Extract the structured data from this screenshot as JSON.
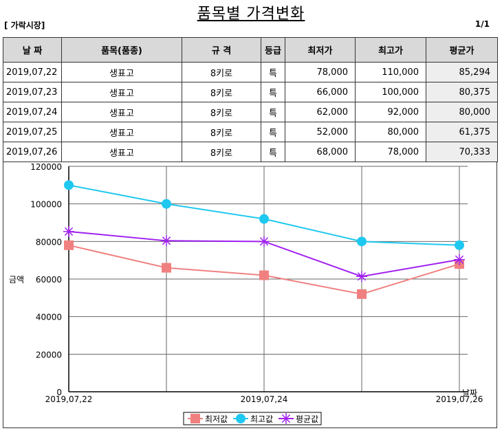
{
  "header": {
    "title": "품목별 가격변화",
    "market": "[ 가락시장]",
    "page": "1/1"
  },
  "table": {
    "columns": [
      "날 짜",
      "품목(품종)",
      "규 격",
      "등급",
      "최저가",
      "최고가",
      "평균가"
    ],
    "rows": [
      [
        "2019,07,22",
        "생표고",
        "8키로",
        "특",
        "78,000",
        "110,000",
        "85,294"
      ],
      [
        "2019,07,23",
        "생표고",
        "8키로",
        "특",
        "66,000",
        "100,000",
        "80,375"
      ],
      [
        "2019,07,24",
        "생표고",
        "8키로",
        "특",
        "62,000",
        "92,000",
        "80,000"
      ],
      [
        "2019,07,25",
        "생표고",
        "8키로",
        "특",
        "52,000",
        "80,000",
        "61,375"
      ],
      [
        "2019,07,26",
        "생표고",
        "8키로",
        "특",
        "68,000",
        "78,000",
        "70,333"
      ]
    ]
  },
  "chart_data": {
    "type": "line",
    "x": [
      "2019,07,22",
      "2019,07,23",
      "2019,07,24",
      "2019,07,25",
      "2019,07,26"
    ],
    "x_tick_labels": [
      "2019,07,22",
      "2019,07,24",
      "2019,07,26"
    ],
    "y_ticks": [
      0,
      20000,
      40000,
      60000,
      80000,
      100000,
      120000
    ],
    "ylim": [
      0,
      120000
    ],
    "ylabel": "금액",
    "xlabel": "날짜",
    "grid": true,
    "legend_position": "bottom",
    "series": [
      {
        "name": "최저값",
        "values": [
          78000,
          66000,
          62000,
          52000,
          68000
        ],
        "color": "#f08080",
        "marker": "square"
      },
      {
        "name": "최고값",
        "values": [
          110000,
          100000,
          92000,
          80000,
          78000
        ],
        "color": "#1ec8f0",
        "marker": "circle"
      },
      {
        "name": "평균값",
        "values": [
          85294,
          80375,
          80000,
          61375,
          70333
        ],
        "color": "#a020f0",
        "marker": "star"
      }
    ]
  }
}
